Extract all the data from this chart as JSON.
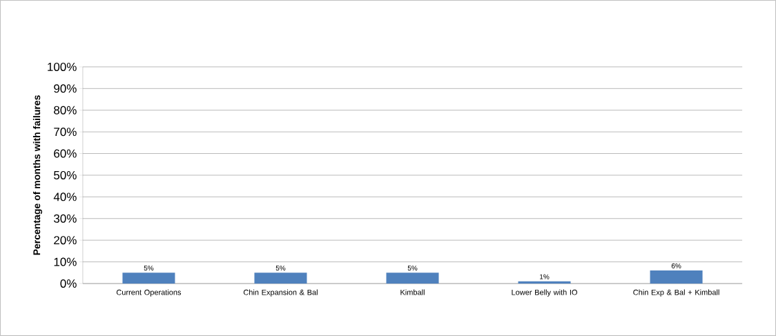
{
  "chart_data": {
    "type": "bar",
    "ylabel": "Percentage of months with failures",
    "categories": [
      "Current Operations",
      "Chin Expansion & Bal",
      "Kimball",
      "Lower Belly with IO",
      "Chin Exp & Bal + Kimball"
    ],
    "values": [
      5,
      5,
      5,
      1,
      6
    ],
    "value_labels": [
      "5%",
      "5%",
      "5%",
      "1%",
      "6%"
    ],
    "color": "#4f81bd",
    "ylim": [
      0,
      100
    ],
    "yticks": [
      {
        "value": 0,
        "label": "0%"
      },
      {
        "value": 10,
        "label": "10%"
      },
      {
        "value": 20,
        "label": "20%"
      },
      {
        "value": 30,
        "label": "30%"
      },
      {
        "value": 40,
        "label": "40%"
      },
      {
        "value": 50,
        "label": "50%"
      },
      {
        "value": 60,
        "label": "60%"
      },
      {
        "value": 70,
        "label": "70%"
      },
      {
        "value": 80,
        "label": "80%"
      },
      {
        "value": 90,
        "label": "90%"
      },
      {
        "value": 100,
        "label": "100%"
      }
    ],
    "grid": "y"
  }
}
